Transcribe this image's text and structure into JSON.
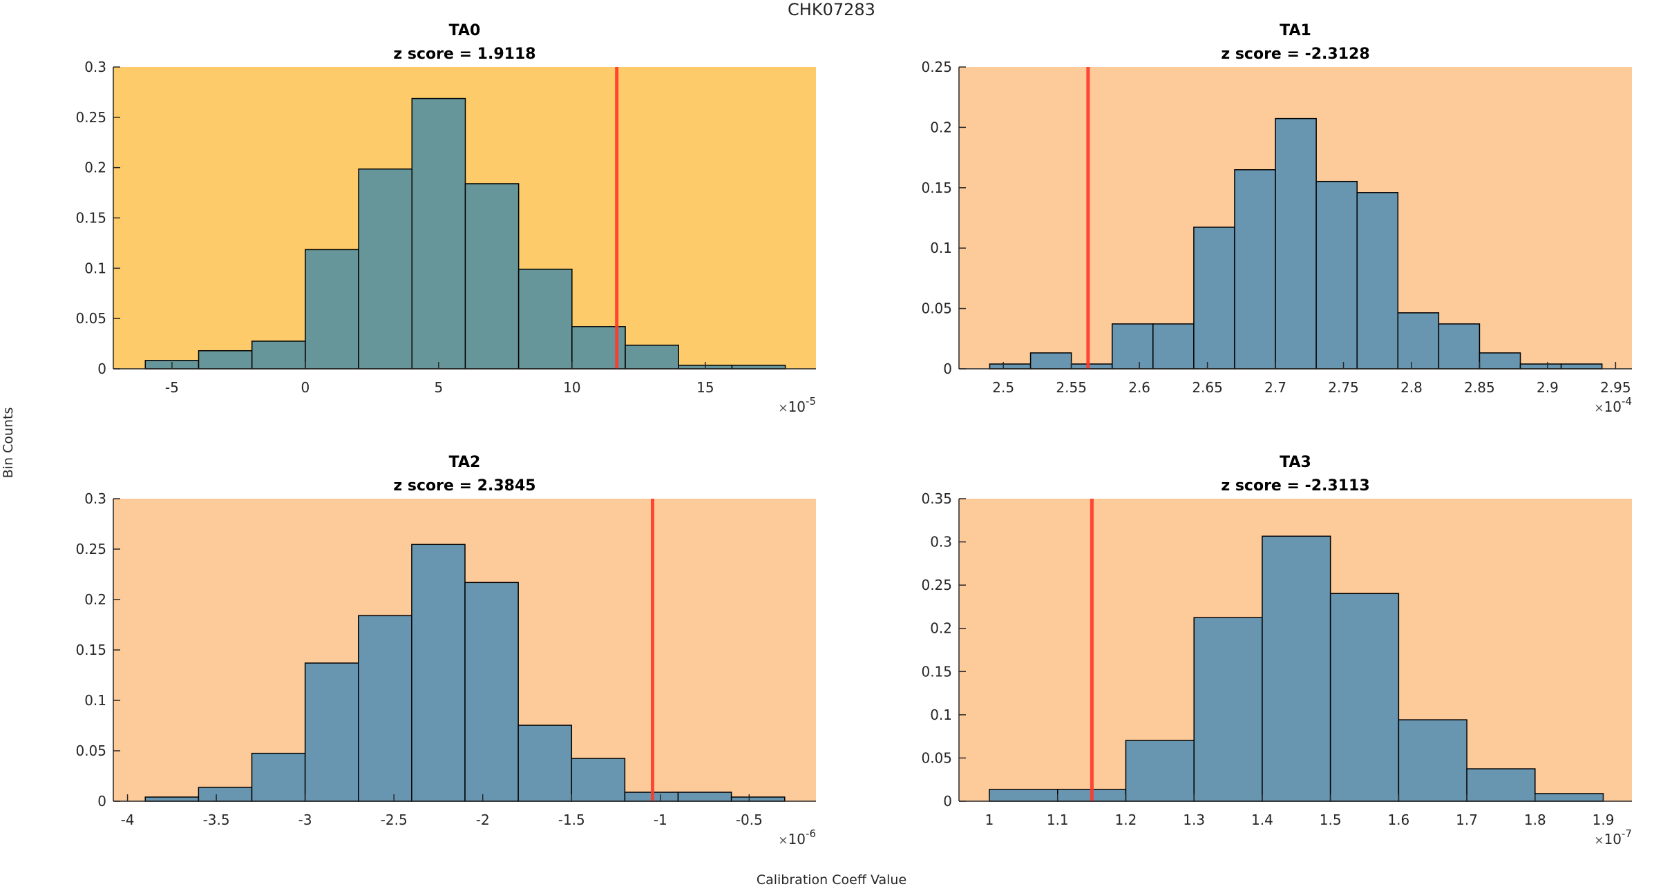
{
  "figure": {
    "title": "CHK07283",
    "xlabel": "Calibration Coeff Value",
    "ylabel": "Bin Counts"
  },
  "colors": {
    "highlight_background": "#FDCB6A",
    "default_background": "#FDCA9A",
    "highlight_bar": "#67969A",
    "default_bar": "#6896B0",
    "bar_edge": "#000000",
    "reference_line": "#FF3A2A",
    "axis": "#262626"
  },
  "chart_data": [
    {
      "type": "bar",
      "subtype": "histogram",
      "title": "TA0",
      "subtitle": "z score = 1.9118",
      "highlighted": true,
      "xlabel": "",
      "ylabel": "Bin Counts",
      "x_exponent_label": "10",
      "x_exponent": "-5",
      "bin_edges": [
        -6,
        -4,
        -2,
        0,
        2,
        4,
        6,
        8,
        10,
        12,
        14,
        16,
        18
      ],
      "values": [
        0.0084,
        0.018,
        0.0275,
        0.1185,
        0.1986,
        0.2687,
        0.184,
        0.099,
        0.042,
        0.0235,
        0.0035,
        0.0035
      ],
      "reference_line_x": 11.68,
      "xlim": [
        -7.2,
        19.15
      ],
      "ylim": [
        0,
        0.3
      ],
      "xticks": [
        -5,
        0,
        5,
        10,
        15
      ],
      "xtick_labels": [
        "-5",
        "0",
        "5",
        "10",
        "15"
      ],
      "yticks": [
        0,
        0.05,
        0.1,
        0.15,
        0.2,
        0.25,
        0.3
      ],
      "ytick_labels": [
        "0",
        "0.05",
        "0.1",
        "0.15",
        "0.2",
        "0.25",
        "0.3"
      ],
      "grid": false
    },
    {
      "type": "bar",
      "subtype": "histogram",
      "title": "TA1",
      "subtitle": "z score = -2.3128",
      "highlighted": false,
      "xlabel": "",
      "ylabel": "",
      "x_exponent_label": "10",
      "x_exponent": "-4",
      "bin_edges": [
        2.49,
        2.52,
        2.55,
        2.58,
        2.61,
        2.64,
        2.67,
        2.7,
        2.73,
        2.76,
        2.79,
        2.82,
        2.85,
        2.88,
        2.91,
        2.94
      ],
      "values": [
        0.004,
        0.0132,
        0.004,
        0.0372,
        0.0372,
        0.1173,
        0.1649,
        0.2073,
        0.1552,
        0.146,
        0.0464,
        0.0372,
        0.0132,
        0.004,
        0.004
      ],
      "reference_line_x": 2.5623,
      "xlim": [
        2.4674,
        2.962
      ],
      "ylim": [
        0,
        0.25
      ],
      "xticks": [
        2.5,
        2.55,
        2.6,
        2.65,
        2.7,
        2.75,
        2.8,
        2.85,
        2.9,
        2.95
      ],
      "xtick_labels": [
        "2.5",
        "2.55",
        "2.6",
        "2.65",
        "2.7",
        "2.75",
        "2.8",
        "2.85",
        "2.9",
        "2.95"
      ],
      "yticks": [
        0,
        0.05,
        0.1,
        0.15,
        0.2,
        0.25
      ],
      "ytick_labels": [
        "0",
        "0.05",
        "0.1",
        "0.15",
        "0.2",
        "0.25"
      ],
      "grid": false
    },
    {
      "type": "bar",
      "subtype": "histogram",
      "title": "TA2",
      "subtitle": "z score = 2.3845",
      "highlighted": false,
      "xlabel": "",
      "ylabel": "",
      "x_exponent_label": "10",
      "x_exponent": "-6",
      "bin_edges": [
        -3.9,
        -3.6,
        -3.3,
        -3.0,
        -2.7,
        -2.4,
        -2.1,
        -1.8,
        -1.5,
        -1.2,
        -0.9,
        -0.6,
        -0.3
      ],
      "values": [
        0.0041,
        0.0137,
        0.0475,
        0.137,
        0.184,
        0.2546,
        0.2169,
        0.0753,
        0.0424,
        0.0089,
        0.0089,
        0.0041
      ],
      "reference_line_x": -1.0439,
      "xlim": [
        -4.08,
        -0.124
      ],
      "ylim": [
        0,
        0.3
      ],
      "xticks": [
        -4,
        -3.5,
        -3,
        -2.5,
        -2,
        -1.5,
        -1,
        -0.5
      ],
      "xtick_labels": [
        "-4",
        "-3.5",
        "-3",
        "-2.5",
        "-2",
        "-1.5",
        "-1",
        "-0.5"
      ],
      "yticks": [
        0,
        0.05,
        0.1,
        0.15,
        0.2,
        0.25,
        0.3
      ],
      "ytick_labels": [
        "0",
        "0.05",
        "0.1",
        "0.15",
        "0.2",
        "0.25",
        "0.3"
      ],
      "grid": false
    },
    {
      "type": "bar",
      "subtype": "histogram",
      "title": "TA3",
      "subtitle": "z score = -2.3113",
      "highlighted": false,
      "xlabel": "",
      "ylabel": "",
      "x_exponent_label": "10",
      "x_exponent": "-7",
      "bin_edges": [
        1.0,
        1.1,
        1.2,
        1.3,
        1.4,
        1.5,
        1.6,
        1.7,
        1.8,
        1.9
      ],
      "values": [
        0.0136,
        0.0136,
        0.0703,
        0.2124,
        0.3066,
        0.2403,
        0.0942,
        0.0375,
        0.0088
      ],
      "reference_line_x": 1.1503,
      "xlim": [
        0.9554,
        1.942
      ],
      "ylim": [
        0,
        0.35
      ],
      "xticks": [
        1,
        1.1,
        1.2,
        1.3,
        1.4,
        1.5,
        1.6,
        1.7,
        1.8,
        1.9
      ],
      "xtick_labels": [
        "1",
        "1.1",
        "1.2",
        "1.3",
        "1.4",
        "1.5",
        "1.6",
        "1.7",
        "1.8",
        "1.9"
      ],
      "yticks": [
        0,
        0.05,
        0.1,
        0.15,
        0.2,
        0.25,
        0.3,
        0.35
      ],
      "ytick_labels": [
        "0",
        "0.05",
        "0.1",
        "0.15",
        "0.2",
        "0.25",
        "0.3",
        "0.35"
      ],
      "grid": false
    }
  ]
}
